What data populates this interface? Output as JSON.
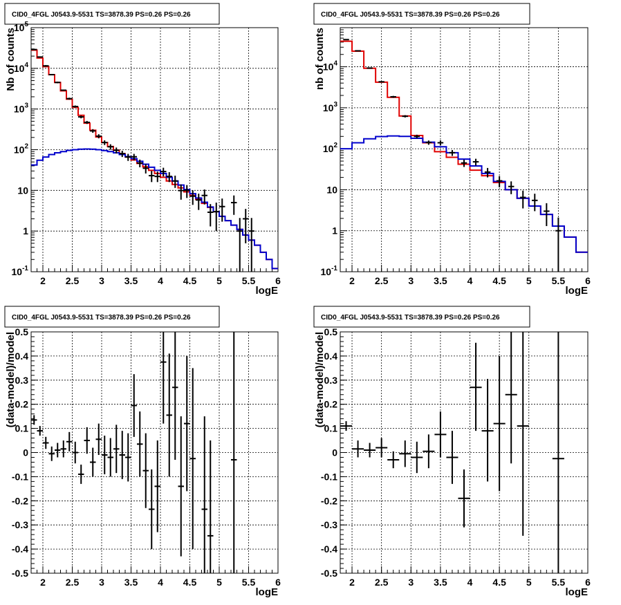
{
  "chart_data": [
    {
      "type": "step-hist-with-errors",
      "title": "CID0_4FGL J0543.9-5531 TS=3878.39 PS=0.26 PS=0.26",
      "xlabel": "logE",
      "ylabel": "Nb of counts",
      "xlim": [
        1.8,
        6.0
      ],
      "ylim": [
        0.1,
        100000
      ],
      "yscale": "log",
      "grid": true,
      "x_ticks": [
        "2",
        "2.5",
        "3",
        "3.5",
        "4",
        "4.5",
        "5",
        "5.5",
        "6"
      ],
      "y_ticks": [
        "10^-1",
        "1",
        "10",
        "10^2",
        "10^3",
        "10^4",
        "10^5"
      ],
      "bin_edges": [
        1.8,
        1.9,
        2.0,
        2.1,
        2.2,
        2.3,
        2.4,
        2.5,
        2.6,
        2.7,
        2.8,
        2.9,
        3.0,
        3.1,
        3.2,
        3.3,
        3.4,
        3.5,
        3.6,
        3.7,
        3.8,
        3.9,
        4.0,
        4.1,
        4.2,
        4.3,
        4.4,
        4.5,
        4.6,
        4.7,
        4.8,
        4.9,
        5.0,
        5.1,
        5.2,
        5.3,
        5.4,
        5.5,
        5.6,
        5.7,
        5.8,
        5.9,
        6.0
      ],
      "series": [
        {
          "color": "#e00000",
          "style": "step",
          "values": [
            28000,
            18000,
            11000,
            7000,
            4500,
            2800,
            1750,
            1100,
            700,
            450,
            300,
            205,
            150,
            120,
            97,
            80,
            66,
            56,
            46,
            38,
            31,
            26,
            21,
            17,
            14,
            11.5,
            9.2,
            7.5,
            6,
            4.8,
            3.8,
            3.0,
            2.3,
            1.8,
            1.4,
            1.1,
            0.8,
            0.6,
            0.45,
            0.3,
            0.2,
            0.12
          ]
        },
        {
          "color": "#0000cc",
          "style": "step",
          "values": [
            42,
            55,
            66,
            76,
            84,
            90,
            96,
            100,
            103,
            104,
            103,
            100,
            95,
            90,
            84,
            76,
            68,
            60,
            52,
            44,
            37,
            31,
            26,
            21,
            17,
            13.5,
            10.5,
            8.3,
            6.5,
            5.1,
            3.9,
            3.0,
            2.3,
            1.8,
            1.4,
            1.1,
            0.8,
            0.6,
            0.45,
            0.3,
            0.2,
            0.12
          ]
        }
      ],
      "points": [
        {
          "x": 1.85,
          "y": 29000,
          "lo": 28000,
          "hi": 30000
        },
        {
          "x": 1.95,
          "y": 19000,
          "lo": 18500,
          "hi": 19500
        },
        {
          "x": 2.05,
          "y": 11500,
          "lo": 11000,
          "hi": 12000
        },
        {
          "x": 2.15,
          "y": 7000,
          "lo": 6800,
          "hi": 7200
        },
        {
          "x": 2.25,
          "y": 4500,
          "lo": 4300,
          "hi": 4700
        },
        {
          "x": 2.35,
          "y": 2900,
          "lo": 2800,
          "hi": 3000
        },
        {
          "x": 2.45,
          "y": 1800,
          "lo": 1700,
          "hi": 1900
        },
        {
          "x": 2.55,
          "y": 1150,
          "lo": 1080,
          "hi": 1220
        },
        {
          "x": 2.65,
          "y": 640,
          "lo": 590,
          "hi": 690
        },
        {
          "x": 2.75,
          "y": 470,
          "lo": 430,
          "hi": 510
        },
        {
          "x": 2.85,
          "y": 290,
          "lo": 260,
          "hi": 320
        },
        {
          "x": 2.95,
          "y": 215,
          "lo": 190,
          "hi": 240
        },
        {
          "x": 3.05,
          "y": 150,
          "lo": 130,
          "hi": 170
        },
        {
          "x": 3.15,
          "y": 118,
          "lo": 100,
          "hi": 136
        },
        {
          "x": 3.25,
          "y": 97,
          "lo": 81,
          "hi": 113
        },
        {
          "x": 3.35,
          "y": 80,
          "lo": 66,
          "hi": 94
        },
        {
          "x": 3.45,
          "y": 66,
          "lo": 53,
          "hi": 79
        },
        {
          "x": 3.55,
          "y": 67,
          "lo": 55,
          "hi": 79
        },
        {
          "x": 3.65,
          "y": 47,
          "lo": 37,
          "hi": 57
        },
        {
          "x": 3.75,
          "y": 35,
          "lo": 26,
          "hi": 44
        },
        {
          "x": 3.85,
          "y": 23,
          "lo": 16,
          "hi": 30
        },
        {
          "x": 3.95,
          "y": 22,
          "lo": 16,
          "hi": 29
        },
        {
          "x": 4.05,
          "y": 29,
          "lo": 22,
          "hi": 36
        },
        {
          "x": 4.15,
          "y": 22,
          "lo": 16,
          "hi": 28
        },
        {
          "x": 4.25,
          "y": 17,
          "lo": 11.5,
          "hi": 23
        },
        {
          "x": 4.35,
          "y": 9.9,
          "lo": 5.9,
          "hi": 14
        },
        {
          "x": 4.45,
          "y": 10,
          "lo": 6.5,
          "hi": 13.5
        },
        {
          "x": 4.55,
          "y": 7.2,
          "lo": 4.4,
          "hi": 10
        },
        {
          "x": 4.65,
          "y": 5.8,
          "lo": 3.3,
          "hi": 8.3
        },
        {
          "x": 4.75,
          "y": 7.5,
          "lo": 4.5,
          "hi": 10.5
        },
        {
          "x": 4.85,
          "y": 2.9,
          "lo": 1.3,
          "hi": 4.6
        },
        {
          "x": 4.95,
          "y": 3.0,
          "lo": 1.0,
          "hi": 5.0
        },
        {
          "x": 5.05,
          "y": 4.0,
          "lo": 1.7,
          "hi": 6.3
        },
        {
          "x": 5.25,
          "y": 5.0,
          "lo": 2.5,
          "hi": 7.5
        },
        {
          "x": 5.35,
          "y": 1.0,
          "lo": 0.1,
          "hi": 2.1
        },
        {
          "x": 5.45,
          "y": 2.0,
          "lo": 0.5,
          "hi": 3.5
        },
        {
          "x": 5.55,
          "y": 1.0,
          "lo": 0.1,
          "hi": 2.1
        }
      ]
    },
    {
      "type": "step-hist-with-errors",
      "title": "CID0_4FGL J0543.9-5531 TS=3878.39 PS=0.26 PS=0.26",
      "xlabel": "logE",
      "ylabel": "nb of counts",
      "xlim": [
        1.8,
        6.0
      ],
      "ylim": [
        0.1,
        90000
      ],
      "yscale": "log",
      "grid": true,
      "x_ticks": [
        "2",
        "2.5",
        "3",
        "3.5",
        "4",
        "4.5",
        "5",
        "5.5",
        "6"
      ],
      "y_ticks": [
        "10^-1",
        "1",
        "10",
        "10^2",
        "10^3",
        "10^4"
      ],
      "bin_edges": [
        1.8,
        2.0,
        2.2,
        2.4,
        2.6,
        2.8,
        3.0,
        3.2,
        3.4,
        3.6,
        3.8,
        4.0,
        4.2,
        4.4,
        4.6,
        4.8,
        5.0,
        5.2,
        5.4,
        5.6,
        5.8,
        6.0
      ],
      "series": [
        {
          "color": "#e00000",
          "style": "step",
          "values": [
            42000,
            24000,
            9200,
            4200,
            1800,
            630,
            210,
            140,
            85,
            62,
            42,
            30,
            22,
            15,
            10,
            6.2,
            4.0,
            2.5,
            1.3,
            0.7,
            0.3
          ]
        },
        {
          "color": "#0000cc",
          "style": "step",
          "values": [
            100,
            140,
            175,
            198,
            205,
            200,
            180,
            145,
            112,
            80,
            56,
            38,
            25,
            16,
            10,
            6.2,
            4.0,
            2.5,
            1.3,
            0.7,
            0.3
          ]
        }
      ],
      "points": [
        {
          "x": 1.9,
          "y": 46000,
          "lo": 45000,
          "hi": 47000
        },
        {
          "x": 2.1,
          "y": 24500,
          "lo": 24000,
          "hi": 25000
        },
        {
          "x": 2.3,
          "y": 9300,
          "lo": 9100,
          "hi": 9500
        },
        {
          "x": 2.5,
          "y": 4300,
          "lo": 4150,
          "hi": 4450
        },
        {
          "x": 2.7,
          "y": 1850,
          "lo": 1750,
          "hi": 1950
        },
        {
          "x": 2.9,
          "y": 620,
          "lo": 580,
          "hi": 660
        },
        {
          "x": 3.1,
          "y": 200,
          "lo": 180,
          "hi": 220
        },
        {
          "x": 3.3,
          "y": 142,
          "lo": 125,
          "hi": 159
        },
        {
          "x": 3.5,
          "y": 140,
          "lo": 120,
          "hi": 160
        },
        {
          "x": 3.7,
          "y": 80,
          "lo": 67,
          "hi": 93
        },
        {
          "x": 3.9,
          "y": 45,
          "lo": 36,
          "hi": 54
        },
        {
          "x": 4.1,
          "y": 48,
          "lo": 39,
          "hi": 57
        },
        {
          "x": 4.3,
          "y": 27,
          "lo": 20,
          "hi": 34
        },
        {
          "x": 4.5,
          "y": 16.5,
          "lo": 11.5,
          "hi": 21.5
        },
        {
          "x": 4.7,
          "y": 12,
          "lo": 7.8,
          "hi": 16
        },
        {
          "x": 4.9,
          "y": 6.5,
          "lo": 3.5,
          "hi": 9.5
        },
        {
          "x": 5.1,
          "y": 5.5,
          "lo": 3.0,
          "hi": 8.0
        },
        {
          "x": 5.3,
          "y": 3.0,
          "lo": 1.3,
          "hi": 4.7
        },
        {
          "x": 5.5,
          "y": 1.0,
          "lo": 0.1,
          "hi": 2.1
        }
      ]
    },
    {
      "type": "scatter-with-errors",
      "title": "CID0_4FGL J0543.9-5531 TS=3878.39 PS=0.26 PS=0.26",
      "xlabel": "logE",
      "ylabel": "(data-model)/model",
      "xlim": [
        1.8,
        6.0
      ],
      "ylim": [
        -0.5,
        0.5
      ],
      "grid": true,
      "x_ticks": [
        "2",
        "2.5",
        "3",
        "3.5",
        "4",
        "4.5",
        "5",
        "5.5",
        "6"
      ],
      "y_ticks": [
        "-0.5",
        "-0.4",
        "-0.3",
        "-0.2",
        "-0.1",
        "0",
        "0.1",
        "0.2",
        "0.3",
        "0.4",
        "0.5"
      ],
      "xerr": 0.05,
      "points": [
        {
          "x": 1.85,
          "y": 0.135,
          "lo": 0.115,
          "hi": 0.155
        },
        {
          "x": 1.95,
          "y": 0.09,
          "lo": 0.07,
          "hi": 0.11
        },
        {
          "x": 2.05,
          "y": 0.04,
          "lo": 0.015,
          "hi": 0.065
        },
        {
          "x": 2.15,
          "y": -0.005,
          "lo": -0.035,
          "hi": 0.025
        },
        {
          "x": 2.25,
          "y": 0.01,
          "lo": -0.02,
          "hi": 0.04
        },
        {
          "x": 2.35,
          "y": 0.015,
          "lo": -0.02,
          "hi": 0.05
        },
        {
          "x": 2.45,
          "y": 0.045,
          "lo": 0.005,
          "hi": 0.085
        },
        {
          "x": 2.55,
          "y": 0.0,
          "lo": -0.045,
          "hi": 0.045
        },
        {
          "x": 2.65,
          "y": -0.09,
          "lo": -0.13,
          "hi": -0.05
        },
        {
          "x": 2.75,
          "y": 0.05,
          "lo": -0.005,
          "hi": 0.105
        },
        {
          "x": 2.85,
          "y": -0.04,
          "lo": -0.1,
          "hi": 0.02
        },
        {
          "x": 2.95,
          "y": 0.055,
          "lo": -0.01,
          "hi": 0.12
        },
        {
          "x": 3.05,
          "y": -0.01,
          "lo": -0.09,
          "hi": 0.07
        },
        {
          "x": 3.15,
          "y": -0.02,
          "lo": -0.1,
          "hi": 0.06
        },
        {
          "x": 3.25,
          "y": 0.015,
          "lo": -0.085,
          "hi": 0.115
        },
        {
          "x": 3.35,
          "y": -0.01,
          "lo": -0.11,
          "hi": 0.09
        },
        {
          "x": 3.45,
          "y": -0.02,
          "lo": -0.12,
          "hi": 0.08
        },
        {
          "x": 3.55,
          "y": 0.195,
          "lo": 0.065,
          "hi": 0.325
        },
        {
          "x": 3.65,
          "y": 0.035,
          "lo": -0.1,
          "hi": 0.17
        },
        {
          "x": 3.75,
          "y": -0.075,
          "lo": -0.23,
          "hi": 0.08
        },
        {
          "x": 3.85,
          "y": -0.235,
          "lo": -0.4,
          "hi": -0.07
        },
        {
          "x": 3.95,
          "y": -0.14,
          "lo": -0.33,
          "hi": 0.05
        },
        {
          "x": 4.05,
          "y": 0.375,
          "lo": 0.12,
          "hi": 0.5
        },
        {
          "x": 4.15,
          "y": 0.155,
          "lo": -0.1,
          "hi": 0.41
        },
        {
          "x": 4.25,
          "y": 0.27,
          "lo": -0.03,
          "hi": 0.5
        },
        {
          "x": 4.35,
          "y": -0.14,
          "lo": -0.43,
          "hi": 0.15
        },
        {
          "x": 4.45,
          "y": 0.12,
          "lo": -0.16,
          "hi": 0.4
        },
        {
          "x": 4.55,
          "y": -0.025,
          "lo": -0.4,
          "hi": 0.35
        },
        {
          "x": 4.75,
          "y": -0.235,
          "lo": -0.5,
          "hi": 0.15
        },
        {
          "x": 4.85,
          "y": -0.345,
          "lo": -0.5,
          "hi": 0.05
        },
        {
          "x": 5.25,
          "y": -0.03,
          "lo": -0.5,
          "hi": 0.5
        }
      ]
    },
    {
      "type": "scatter-with-errors",
      "title": "CID0_4FGL J0543.9-5531 TS=3878.39 PS=0.26 PS=0.26",
      "xlabel": "logE",
      "ylabel": "(data-model)/model",
      "xlim": [
        1.8,
        6.0
      ],
      "ylim": [
        -0.5,
        0.5
      ],
      "grid": true,
      "x_ticks": [
        "2",
        "2.5",
        "3",
        "3.5",
        "4",
        "4.5",
        "5",
        "5.5",
        "6"
      ],
      "y_ticks": [
        "-0.5",
        "-0.4",
        "-0.3",
        "-0.2",
        "-0.1",
        "0",
        "0.1",
        "0.2",
        "0.3",
        "0.4",
        "0.5"
      ],
      "xerr": 0.1,
      "points": [
        {
          "x": 1.9,
          "y": 0.11,
          "lo": 0.09,
          "hi": 0.13
        },
        {
          "x": 2.1,
          "y": 0.015,
          "lo": -0.02,
          "hi": 0.05
        },
        {
          "x": 2.3,
          "y": 0.01,
          "lo": -0.02,
          "hi": 0.04
        },
        {
          "x": 2.5,
          "y": 0.02,
          "lo": -0.02,
          "hi": 0.06
        },
        {
          "x": 2.7,
          "y": -0.03,
          "lo": -0.065,
          "hi": 0.005
        },
        {
          "x": 2.9,
          "y": -0.005,
          "lo": -0.06,
          "hi": 0.05
        },
        {
          "x": 3.1,
          "y": -0.02,
          "lo": -0.085,
          "hi": 0.045
        },
        {
          "x": 3.3,
          "y": 0.005,
          "lo": -0.065,
          "hi": 0.075
        },
        {
          "x": 3.5,
          "y": 0.075,
          "lo": -0.02,
          "hi": 0.17
        },
        {
          "x": 3.7,
          "y": -0.02,
          "lo": -0.13,
          "hi": 0.09
        },
        {
          "x": 3.9,
          "y": -0.19,
          "lo": -0.31,
          "hi": -0.07
        },
        {
          "x": 4.1,
          "y": 0.27,
          "lo": 0.09,
          "hi": 0.455
        },
        {
          "x": 4.3,
          "y": 0.09,
          "lo": -0.12,
          "hi": 0.305
        },
        {
          "x": 4.5,
          "y": 0.12,
          "lo": -0.16,
          "hi": 0.4
        },
        {
          "x": 4.7,
          "y": 0.24,
          "lo": -0.045,
          "hi": 0.5
        },
        {
          "x": 4.9,
          "y": 0.11,
          "lo": -0.345,
          "hi": 0.5
        },
        {
          "x": 5.5,
          "y": -0.025,
          "lo": -0.5,
          "hi": 0.5
        }
      ]
    }
  ]
}
